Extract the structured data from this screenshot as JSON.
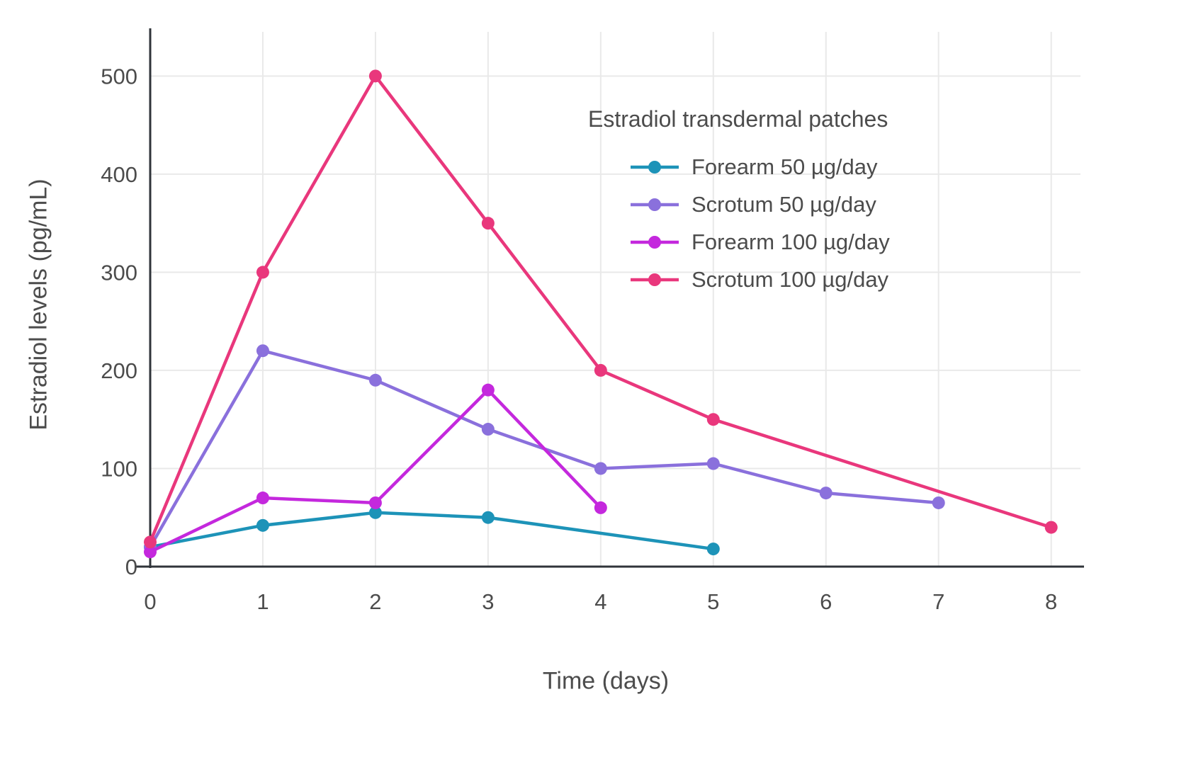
{
  "chart_data": {
    "type": "line",
    "title": "",
    "legend_title": "Estradiol transdermal patches",
    "xlabel": "Time (days)",
    "ylabel": "Estradiol levels (pg/mL)",
    "xlim": [
      0,
      8.26
    ],
    "ylim": [
      0,
      545
    ],
    "x_ticks": [
      0,
      1,
      2,
      3,
      4,
      5,
      6,
      7,
      8
    ],
    "y_ticks": [
      0,
      100,
      200,
      300,
      400,
      500
    ],
    "grid": true,
    "legend_position": "inside-top-right",
    "series": [
      {
        "name": "Forearm 50 µg/day",
        "color": "#1d93b8",
        "x": [
          0,
          1,
          2,
          3,
          5
        ],
        "y": [
          20,
          42,
          55,
          50,
          18
        ]
      },
      {
        "name": "Scrotum 50 µg/day",
        "color": "#8a70dc",
        "x": [
          0,
          1,
          2,
          3,
          4,
          5,
          6,
          7
        ],
        "y": [
          20,
          220,
          190,
          140,
          100,
          105,
          75,
          65
        ]
      },
      {
        "name": "Forearm 100 µg/day",
        "color": "#c428dd",
        "x": [
          0,
          1,
          2,
          3,
          4
        ],
        "y": [
          15,
          70,
          65,
          180,
          60
        ]
      },
      {
        "name": "Scrotum 100 µg/day",
        "color": "#e9377c",
        "x": [
          0,
          1,
          2,
          3,
          4,
          5,
          8
        ],
        "y": [
          25,
          300,
          500,
          350,
          200,
          150,
          40
        ]
      }
    ],
    "colors": {
      "axis": "#30343a",
      "grid": "#e9e9e9",
      "text": "#4c4c4c"
    }
  }
}
